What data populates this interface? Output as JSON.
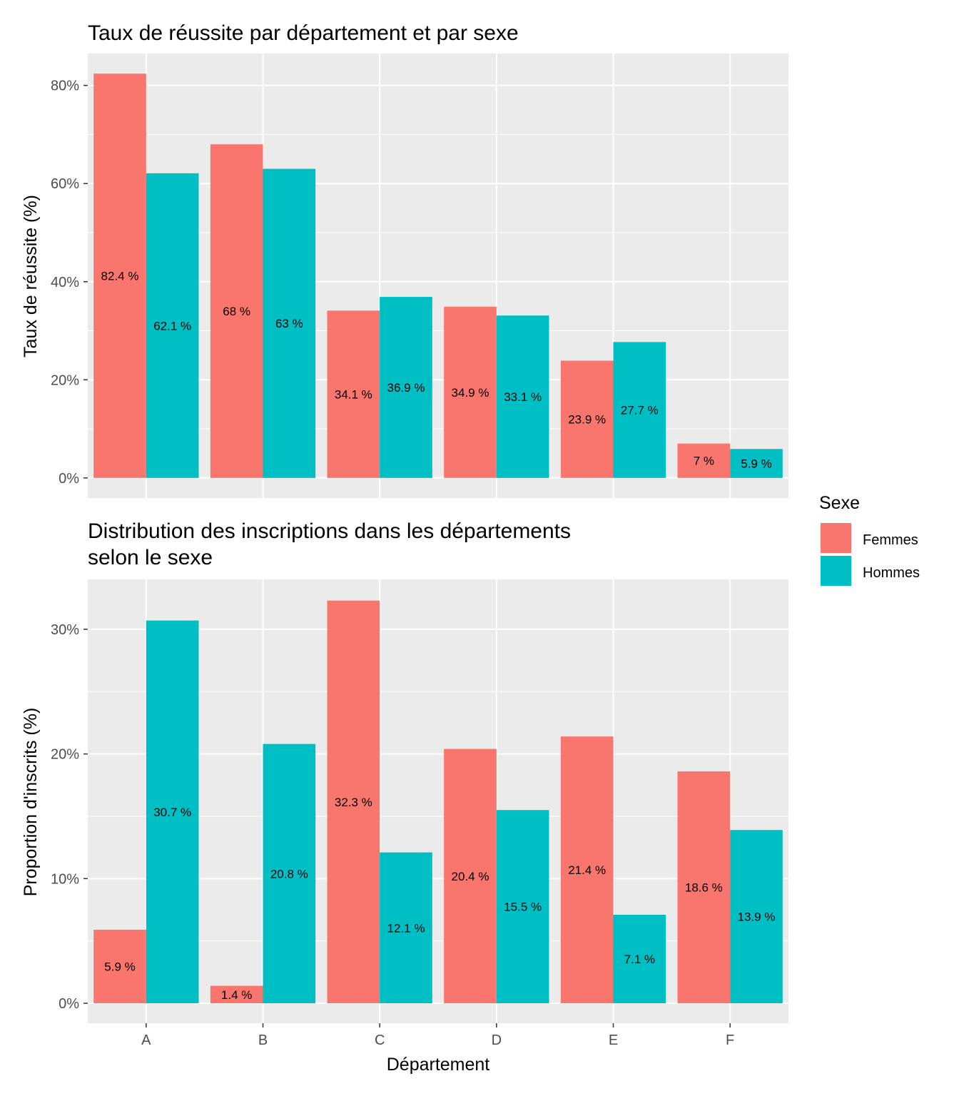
{
  "colors": {
    "Femmes": "#F8766D",
    "Hommes": "#00BFC4",
    "panel": "#EBEBEB",
    "grid": "#FFFFFF"
  },
  "legend": {
    "title": "Sexe",
    "items": [
      {
        "label": "Femmes",
        "color": "#F8766D"
      },
      {
        "label": "Hommes",
        "color": "#00BFC4"
      }
    ]
  },
  "chart_data": [
    {
      "type": "bar",
      "title": "Taux de réussite par département et par sexe",
      "subtitle": "",
      "xlabel": "",
      "ylabel": "Taux de réussite (%)",
      "categories": [
        "A",
        "B",
        "C",
        "D",
        "E",
        "F"
      ],
      "series": [
        {
          "name": "Femmes",
          "values": [
            82.4,
            68.0,
            34.1,
            34.9,
            23.9,
            7.0
          ],
          "labels": [
            "82.4 %",
            "68 %",
            "34.1 %",
            "34.9 %",
            "23.9 %",
            "7 %"
          ]
        },
        {
          "name": "Hommes",
          "values": [
            62.1,
            63.0,
            36.9,
            33.1,
            27.7,
            5.9
          ],
          "labels": [
            "62.1 %",
            "63 %",
            "36.9 %",
            "33.1 %",
            "27.7 %",
            "5.9 %"
          ]
        }
      ],
      "ylim": [
        -4.1,
        86.5
      ],
      "yticks": [
        0,
        20,
        40,
        60,
        80
      ],
      "ytick_labels": [
        "0%",
        "20%",
        "40%",
        "60%",
        "80%"
      ],
      "show_x_ticks": false,
      "grid": true,
      "legend_position": "right"
    },
    {
      "type": "bar",
      "title": "Distribution des inscriptions dans les départements\nselon le sexe",
      "xlabel": "Département",
      "ylabel": "Proportion d'inscrits (%)",
      "categories": [
        "A",
        "B",
        "C",
        "D",
        "E",
        "F"
      ],
      "series": [
        {
          "name": "Femmes",
          "values": [
            5.9,
            1.4,
            32.3,
            20.4,
            21.4,
            18.6
          ],
          "labels": [
            "5.9 %",
            "1.4 %",
            "32.3 %",
            "20.4 %",
            "21.4 %",
            "18.6 %"
          ]
        },
        {
          "name": "Hommes",
          "values": [
            30.7,
            20.8,
            12.1,
            15.5,
            7.1,
            13.9
          ],
          "labels": [
            "30.7 %",
            "20.8 %",
            "12.1 %",
            "15.5 %",
            "7.1 %",
            "13.9 %"
          ]
        }
      ],
      "ylim": [
        -1.6,
        34.0
      ],
      "yticks": [
        0,
        10,
        20,
        30
      ],
      "ytick_labels": [
        "0%",
        "10%",
        "20%",
        "30%"
      ],
      "show_x_ticks": true,
      "grid": true,
      "legend_position": "right"
    }
  ]
}
